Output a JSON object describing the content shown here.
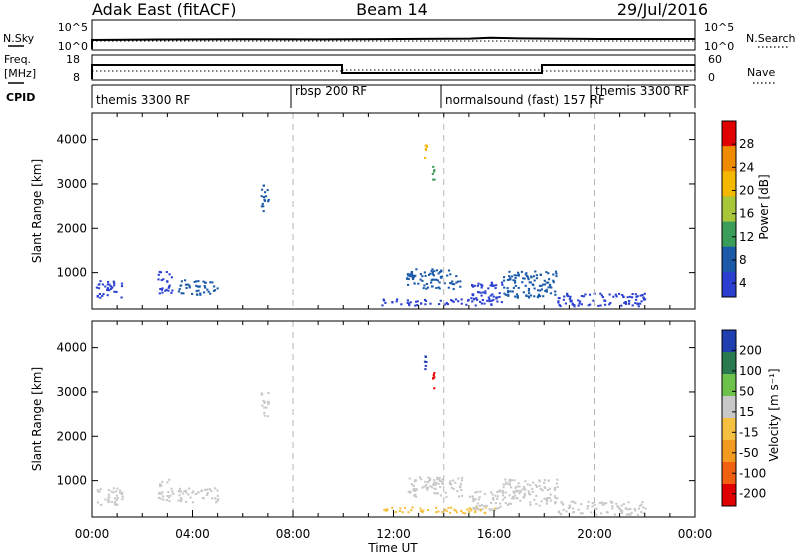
{
  "header": {
    "station": "Adak East (fitACF)",
    "beam": "Beam 14",
    "date": "29/Jul/2016"
  },
  "left_labels": {
    "nsky": "N.Sky",
    "freq_line1": "Freq.",
    "freq_line2": "[MHz]",
    "cpid": "CPID"
  },
  "right_labels": {
    "nsearch": "N.Search",
    "nave": "Nave"
  },
  "nsky_panel": {
    "left_ticks": [
      "10^5",
      "10^0"
    ],
    "right_ticks": [
      "10^5",
      "10^0"
    ]
  },
  "freq_panel": {
    "left_ticks": [
      "18",
      "8"
    ],
    "right_ticks": [
      "60",
      "0"
    ]
  },
  "cpid_segments": [
    {
      "label": "themis 3300 RF",
      "start_hour": 0
    },
    {
      "label": "rbsp 200 RF",
      "start_hour": 8
    },
    {
      "label": "normalsound (fast) 157 RF",
      "start_hour": 14
    },
    {
      "label": "themis 3300 RF",
      "start_hour": 20
    }
  ],
  "power_colorbar": {
    "label": "Power [dB]",
    "ticks": [
      "28",
      "24",
      "20",
      "16",
      "12",
      "8",
      "4"
    ],
    "colors": [
      "#e00000",
      "#f08a00",
      "#f5b800",
      "#a8c63a",
      "#3a9e5a",
      "#1a5aa8",
      "#2a3fd0"
    ]
  },
  "velocity_colorbar": {
    "label": "Velocity [m s⁻¹]",
    "ticks": [
      "200",
      "100",
      "50",
      "15",
      "-15",
      "-50",
      "-100",
      "-200"
    ],
    "colors": [
      "#1f3fb0",
      "#2a7a50",
      "#6cc24a",
      "#c8c8c8",
      "#f5c040",
      "#f39a20",
      "#f06010",
      "#e00000"
    ]
  },
  "chart_data": [
    {
      "type": "heatmap",
      "title": "Power",
      "ylabel": "Slant Range [km]",
      "xlabel": "",
      "ylim": [
        180,
        4600
      ],
      "xlim_hours": [
        0,
        24
      ],
      "y_ticks": [
        1000,
        2000,
        3000,
        4000
      ],
      "dashed_lines_hours": [
        8,
        14,
        20
      ],
      "echo_regions": [
        {
          "t0": 0.1,
          "t1": 1.2,
          "r0": 450,
          "r1": 850,
          "color": "#2a3fd0"
        },
        {
          "t0": 2.6,
          "t1": 3.2,
          "r0": 550,
          "r1": 1050,
          "color": "#2a3fd0"
        },
        {
          "t0": 3.4,
          "t1": 5.0,
          "r0": 520,
          "r1": 850,
          "color": "#1a5aa8"
        },
        {
          "t0": 6.7,
          "t1": 7.0,
          "r0": 2350,
          "r1": 3000,
          "color": "#1a5aa8"
        },
        {
          "t0": 13.2,
          "t1": 13.3,
          "r0": 3500,
          "r1": 3900,
          "color": "#f5b800"
        },
        {
          "t0": 13.5,
          "t1": 13.6,
          "r0": 3100,
          "r1": 3500,
          "color": "#3a9e5a"
        },
        {
          "t0": 12.5,
          "t1": 14.7,
          "r0": 650,
          "r1": 1100,
          "color": "#1a5aa8"
        },
        {
          "t0": 11.5,
          "t1": 16.0,
          "r0": 280,
          "r1": 420,
          "color": "#2a3fd0"
        },
        {
          "t0": 15.0,
          "t1": 16.3,
          "r0": 350,
          "r1": 800,
          "color": "#2a3fd0"
        },
        {
          "t0": 16.3,
          "t1": 18.5,
          "r0": 450,
          "r1": 1050,
          "color": "#1a5aa8"
        },
        {
          "t0": 18.5,
          "t1": 22.0,
          "r0": 250,
          "r1": 550,
          "color": "#2a3fd0"
        }
      ]
    },
    {
      "type": "heatmap",
      "title": "Velocity",
      "ylabel": "Slant Range [km]",
      "xlabel": "Time UT",
      "ylim": [
        180,
        4600
      ],
      "xlim_hours": [
        0,
        24
      ],
      "y_ticks": [
        1000,
        2000,
        3000,
        4000
      ],
      "x_ticks": [
        "00:00",
        "04:00",
        "08:00",
        "12:00",
        "16:00",
        "20:00",
        "00:00"
      ],
      "dashed_lines_hours": [
        8,
        14,
        20
      ],
      "echo_regions": [
        {
          "t0": 0.1,
          "t1": 1.2,
          "r0": 450,
          "r1": 850,
          "color": "#c8c8c8"
        },
        {
          "t0": 2.6,
          "t1": 3.2,
          "r0": 550,
          "r1": 1050,
          "color": "#c8c8c8"
        },
        {
          "t0": 3.4,
          "t1": 5.0,
          "r0": 520,
          "r1": 850,
          "color": "#c8c8c8"
        },
        {
          "t0": 6.7,
          "t1": 7.0,
          "r0": 2350,
          "r1": 3000,
          "color": "#c8c8c8"
        },
        {
          "t0": 13.2,
          "t1": 13.3,
          "r0": 3500,
          "r1": 3900,
          "color": "#1f3fb0"
        },
        {
          "t0": 13.5,
          "t1": 13.6,
          "r0": 3100,
          "r1": 3500,
          "color": "#e00000"
        },
        {
          "t0": 12.5,
          "t1": 14.7,
          "r0": 650,
          "r1": 1100,
          "color": "#c8c8c8"
        },
        {
          "t0": 11.5,
          "t1": 16.0,
          "r0": 280,
          "r1": 420,
          "color": "#f5c040"
        },
        {
          "t0": 15.0,
          "t1": 16.3,
          "r0": 350,
          "r1": 800,
          "color": "#c8c8c8"
        },
        {
          "t0": 16.3,
          "t1": 18.5,
          "r0": 450,
          "r1": 1050,
          "color": "#c8c8c8"
        },
        {
          "t0": 18.5,
          "t1": 22.0,
          "r0": 250,
          "r1": 550,
          "color": "#c8c8c8"
        }
      ]
    }
  ]
}
